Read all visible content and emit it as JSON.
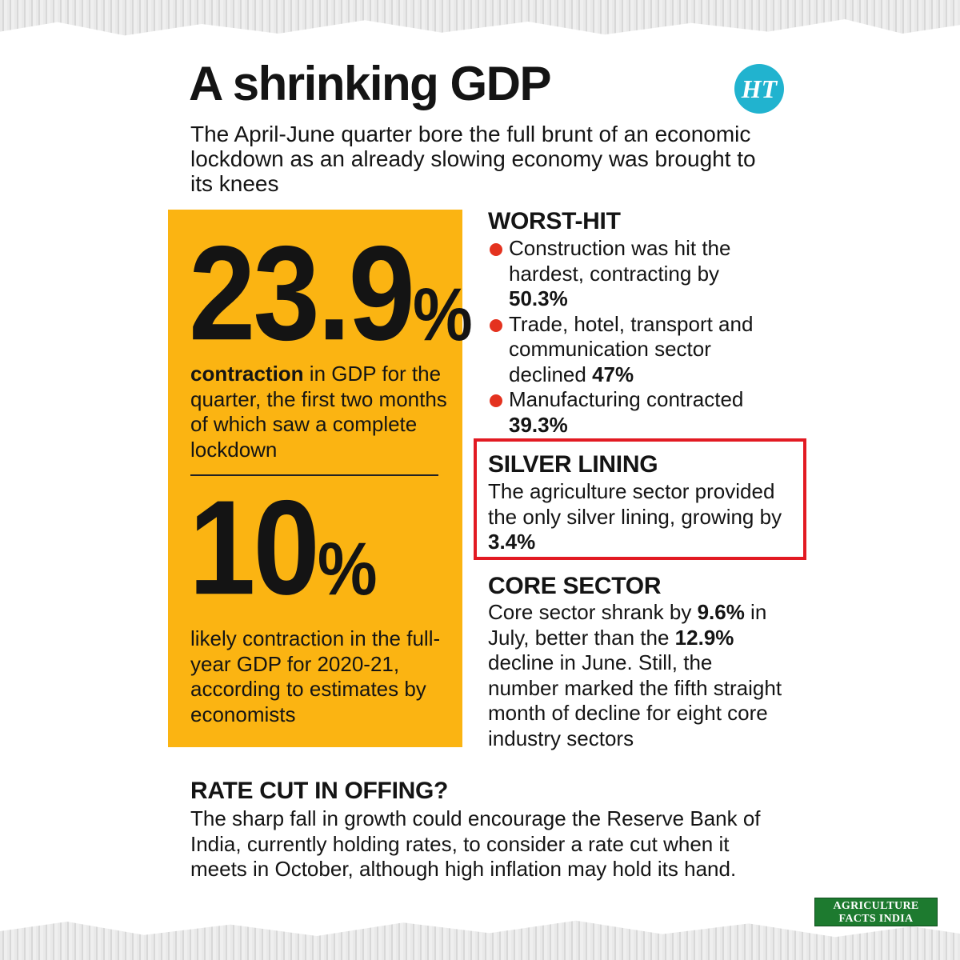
{
  "headline": "A shrinking GDP",
  "logo_text": "HT",
  "subhead": "The April-June quarter bore the full brunt of an economic lockdown as an already slowing economy was brought to its knees",
  "stat_primary": {
    "number": "23.9",
    "suffix": "%",
    "desc_bold": "contraction",
    "desc_rest": " in GDP for the quarter, the first two months of which saw a complete lockdown"
  },
  "stat_secondary": {
    "number": "10",
    "suffix": "%",
    "desc": "likely contraction in the full-year GDP for 2020-21, according to estimates by economists"
  },
  "worst_hit": {
    "title": "WORST-HIT",
    "items": [
      {
        "text": "Construction was hit the hardest, contracting by ",
        "value": "50.3%"
      },
      {
        "text": "Trade, hotel, transport and communication sector declined ",
        "value": "47%"
      },
      {
        "text": "Manufacturing contracted ",
        "value": "39.3%"
      }
    ]
  },
  "silver_lining": {
    "title": "SILVER LINING",
    "text": "The agriculture sector provided the only silver lining, growing by ",
    "value": "3.4%"
  },
  "core_sector": {
    "title": "CORE SECTOR",
    "part1": "Core sector shrank by ",
    "value1": "9.6%",
    "part2": " in July, better than the ",
    "value2": "12.9%",
    "part3": " decline in June. Still, the number marked the fifth straight month of decline for eight core industry sectors"
  },
  "rate_cut": {
    "title": "RATE CUT IN OFFING?",
    "text": "The sharp fall in growth could encourage the Reserve Bank of India, currently holding rates, to consider a rate cut when it meets in October, although high inflation may hold its hand."
  },
  "badge": {
    "line1": "AGRICULTURE",
    "line2": "FACTS INDIA"
  },
  "colors": {
    "accent_yellow": "#fbb412",
    "bullet_red": "#e4321f",
    "highlight_frame": "#e21a22",
    "logo_teal": "#21b3cf",
    "badge_green": "#1d7a2f"
  },
  "icons": {
    "bullet": "red-dot-bullet-icon"
  }
}
